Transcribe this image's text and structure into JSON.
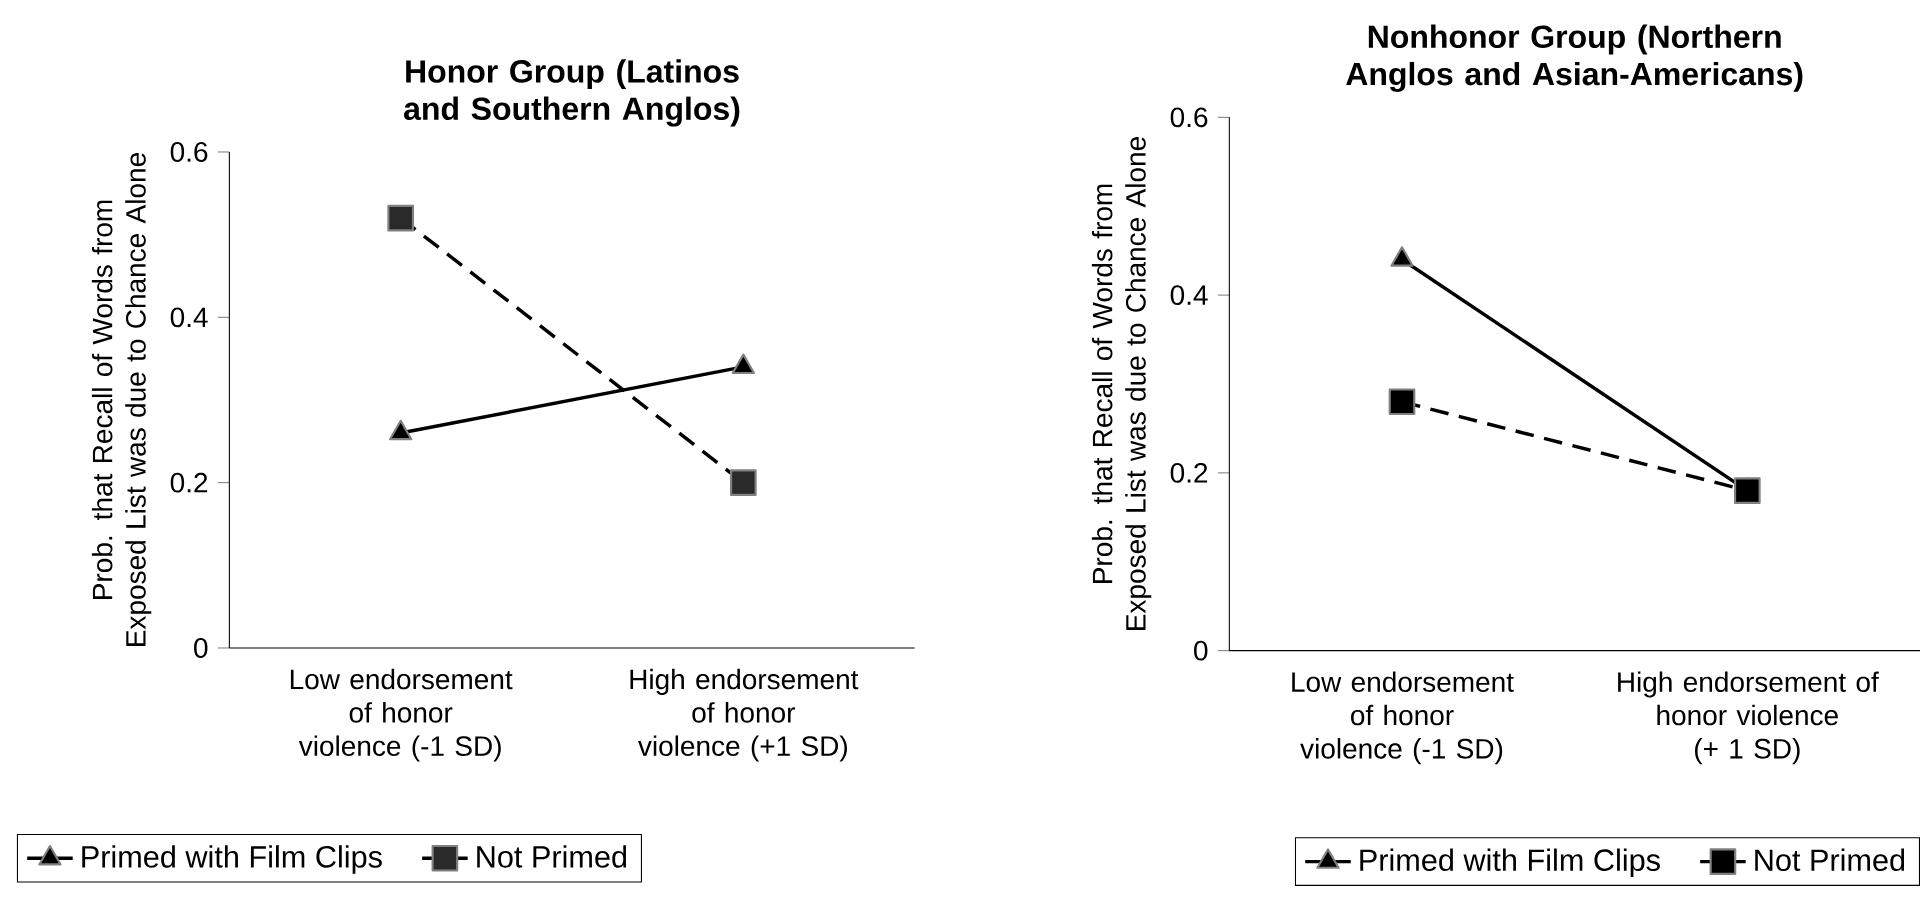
{
  "chart_data": [
    {
      "type": "line",
      "title": "Honor Group (Latinos and Southern Anglos)",
      "ylabel": "Prob. that Recall of Words from Exposed List was due to Chance Alone",
      "categories": [
        "Low endorsement of honor violence (-1 SD)",
        "High endorsement of honor violence (+1 SD)"
      ],
      "series": [
        {
          "name": "Primed with Film Clips",
          "color": "#000000",
          "values": [
            0.26,
            0.34
          ],
          "marker": "triangle",
          "line_style": "solid"
        },
        {
          "name": "Not Primed",
          "color": "#2a2a2a",
          "values": [
            0.52,
            0.2
          ],
          "marker": "square",
          "line_style": "dashed"
        }
      ],
      "ylim": [
        0,
        0.6
      ],
      "yticks": [
        0,
        0.2,
        0.4,
        0.6
      ],
      "grid": false,
      "legend": "bottom"
    },
    {
      "type": "line",
      "title": "Nonhonor Group (Northern Anglos and Asian-Americans)",
      "ylabel": "Prob. that Recall of Words from Exposed List was due to Chance Alone",
      "categories": [
        "Low endorsement of honor violence (-1 SD)",
        "High endorsement of honor violence (+ 1 SD)"
      ],
      "series": [
        {
          "name": "Primed with Film Clips",
          "color": "#000000",
          "values": [
            0.44,
            0.18
          ],
          "marker": "triangle",
          "line_style": "solid"
        },
        {
          "name": "Not Primed",
          "color": "#000000",
          "values": [
            0.28,
            0.18
          ],
          "marker": "square",
          "line_style": "dashed"
        }
      ],
      "ylim": [
        0,
        0.6
      ],
      "yticks": [
        0,
        0.2,
        0.4,
        0.6
      ],
      "grid": false,
      "legend": "bottom"
    }
  ]
}
